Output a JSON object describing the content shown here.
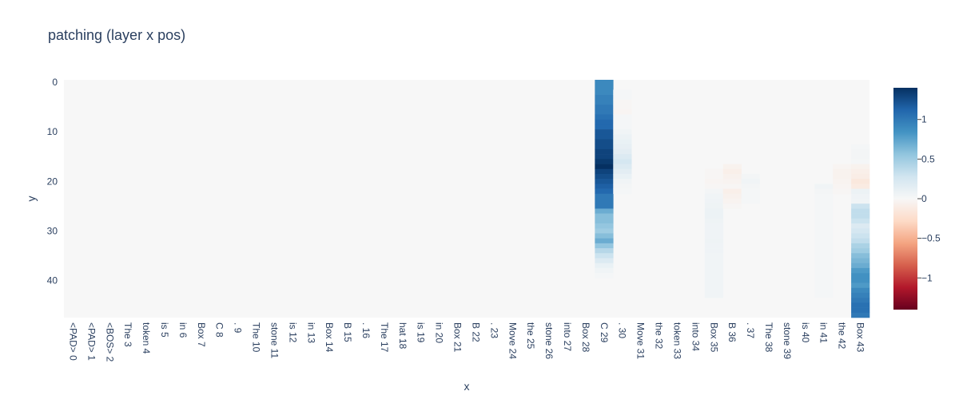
{
  "chart_data": {
    "type": "heatmap",
    "title": "patching (layer x pos)",
    "xlabel": "x",
    "ylabel": "y",
    "x_categories": [
      "<PAD> 0",
      "<PAD> 1",
      "<BOS> 2",
      "The 3",
      "token 4",
      "is 5",
      "in 6",
      "Box 7",
      "C 8",
      ". 9",
      "The 10",
      "stone 11",
      "is 12",
      "in 13",
      "Box 14",
      "B 15",
      ". 16",
      "The 17",
      "hat 18",
      "is 19",
      "in 20",
      "Box 21",
      "B 22",
      ". 23",
      "Move 24",
      "the 25",
      "stone 26",
      "into 27",
      "Box 28",
      "C 29",
      ". 30",
      "Move 31",
      "the 32",
      "token 33",
      "into 34",
      "Box 35",
      "B 36",
      ". 37",
      "The 38",
      "stone 39",
      "is 40",
      "in 41",
      "the 42",
      "Box 43"
    ],
    "y_range": [
      0,
      47
    ],
    "y_ticks": [
      0,
      10,
      20,
      30,
      40
    ],
    "colorscale": "RdBu",
    "zmin": -1.4,
    "zmax": 1.4,
    "colorbar_ticks": [
      {
        "value": 1,
        "label": "1"
      },
      {
        "value": 0.5,
        "label": "0.5"
      },
      {
        "value": 0,
        "label": "0"
      },
      {
        "value": -0.5,
        "label": "−0.5"
      },
      {
        "value": -1,
        "label": "−1"
      }
    ],
    "columns": {
      "29": [
        0.9,
        0.9,
        0.9,
        0.95,
        0.95,
        1.0,
        1.0,
        1.05,
        1.1,
        1.1,
        1.2,
        1.2,
        1.25,
        1.25,
        1.3,
        1.3,
        1.35,
        1.4,
        1.3,
        1.25,
        1.2,
        1.15,
        1.1,
        1.0,
        1.0,
        1.0,
        0.7,
        0.6,
        0.6,
        0.55,
        0.5,
        0.6,
        0.7,
        0.55,
        0.4,
        0.3,
        0.2,
        0.1,
        0.05,
        0.02,
        0,
        0,
        0,
        0,
        0,
        0,
        0,
        0
      ],
      "30": [
        0,
        0,
        0.02,
        0.02,
        -0.02,
        -0.02,
        -0.03,
        0.02,
        0.02,
        0.02,
        0.05,
        0.08,
        0.1,
        0.12,
        0.15,
        0.2,
        0.25,
        0.2,
        0.15,
        0.1,
        0.05,
        0.03,
        0.02,
        0,
        0,
        0,
        0,
        0,
        0,
        0,
        0,
        0,
        0,
        0,
        0,
        0,
        0,
        0,
        0,
        0,
        0,
        0,
        0,
        0,
        0,
        0,
        0,
        0
      ],
      "35": [
        0,
        0,
        0,
        0,
        0,
        0,
        0,
        0,
        0,
        0,
        0,
        0,
        0,
        0,
        0,
        0,
        0,
        0,
        -0.02,
        -0.02,
        -0.03,
        -0.02,
        0.03,
        0.05,
        0.06,
        0.07,
        0.08,
        0.08,
        0.07,
        0.06,
        0.06,
        0.06,
        0.07,
        0.06,
        0.06,
        0.05,
        0.05,
        0.05,
        0.05,
        0.05,
        0.05,
        0.05,
        0.05,
        0.05,
        0,
        0,
        0,
        0
      ],
      "36": [
        0,
        0,
        0,
        0,
        0,
        0,
        0,
        0,
        0,
        0,
        0,
        0,
        0,
        0,
        0,
        0,
        0,
        -0.05,
        -0.08,
        -0.06,
        -0.04,
        -0.02,
        -0.08,
        -0.06,
        -0.04,
        -0.02,
        0,
        0,
        0,
        0,
        0,
        0,
        0,
        0,
        0,
        0,
        0,
        0,
        0,
        0,
        0,
        0,
        0,
        0,
        0,
        0,
        0,
        0
      ],
      "37": [
        0,
        0,
        0,
        0,
        0,
        0,
        0,
        0,
        0,
        0,
        0,
        0,
        0,
        0,
        0,
        0,
        0,
        0,
        0,
        0.03,
        0.05,
        0.03,
        0.02,
        0.02,
        0.02,
        0,
        0,
        0,
        0,
        0,
        0,
        0,
        0,
        0,
        0,
        0,
        0,
        0,
        0,
        0,
        0,
        0,
        0,
        0,
        0,
        0,
        0,
        0
      ],
      "41": [
        0,
        0,
        0,
        0,
        0,
        0,
        0,
        0,
        0,
        0,
        0,
        0,
        0,
        0,
        0,
        0,
        0,
        0,
        0,
        0,
        0,
        0.05,
        0.03,
        0.02,
        0.02,
        0.02,
        0.02,
        0.02,
        0.02,
        0.02,
        0.02,
        0.02,
        0.02,
        0.02,
        0.02,
        0.02,
        0.02,
        0.02,
        0.02,
        0.02,
        0.02,
        0.02,
        0.02,
        0.02,
        0,
        0,
        0,
        0
      ],
      "42": [
        0,
        0,
        0,
        0,
        0,
        0,
        0,
        0,
        0,
        0,
        0,
        0,
        0,
        0,
        0,
        0,
        0,
        -0.03,
        -0.05,
        -0.05,
        -0.04,
        -0.03,
        -0.02,
        0,
        0,
        0,
        0,
        0,
        0,
        0,
        0,
        0,
        0,
        0,
        0,
        0,
        0,
        0,
        0,
        0,
        0,
        0,
        0,
        0,
        0,
        0,
        0,
        0
      ],
      "43": [
        0,
        0,
        0,
        0,
        0,
        0,
        0,
        0,
        0,
        0,
        0,
        0,
        0,
        0.02,
        0.03,
        0.03,
        0.02,
        -0.05,
        -0.08,
        -0.1,
        -0.15,
        -0.12,
        0.08,
        0.06,
        0.05,
        0.3,
        0.35,
        0.35,
        0.3,
        0.2,
        0.25,
        0.3,
        0.35,
        0.45,
        0.5,
        0.6,
        0.65,
        0.7,
        0.8,
        0.85,
        0.85,
        0.8,
        0.9,
        0.95,
        1.0,
        1.05,
        1.05,
        1.0
      ]
    },
    "background_value": 0
  }
}
